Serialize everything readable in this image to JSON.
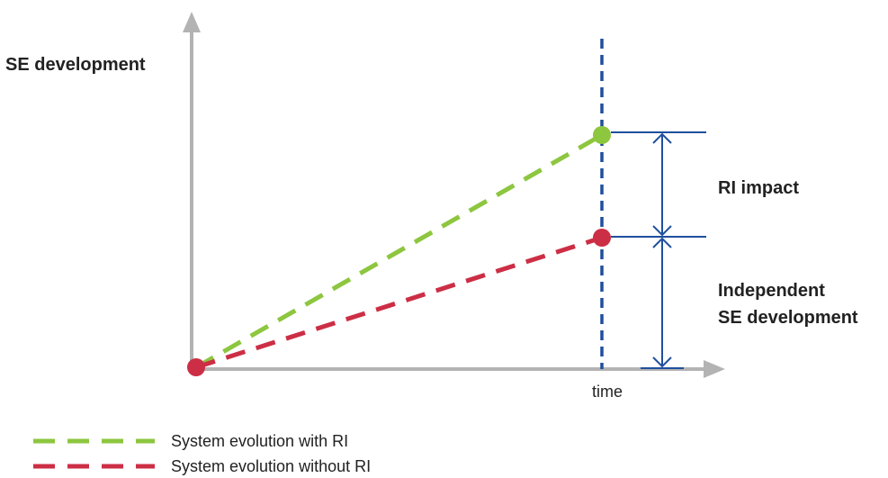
{
  "labels": {
    "y_axis": "SE development",
    "x_axis": "time",
    "ri_impact": "RI impact",
    "independent_line1": "Independent",
    "independent_line2": "SE development"
  },
  "legend": [
    {
      "label": "System evolution with RI",
      "color": "#8dc63f"
    },
    {
      "label": "System evolution without RI",
      "color": "#cc2e45"
    }
  ],
  "colors": {
    "axis": "#b3b3b3",
    "with_ri": "#8dc63f",
    "without_ri": "#cc2e45",
    "marker": "#1f4f9e"
  }
}
